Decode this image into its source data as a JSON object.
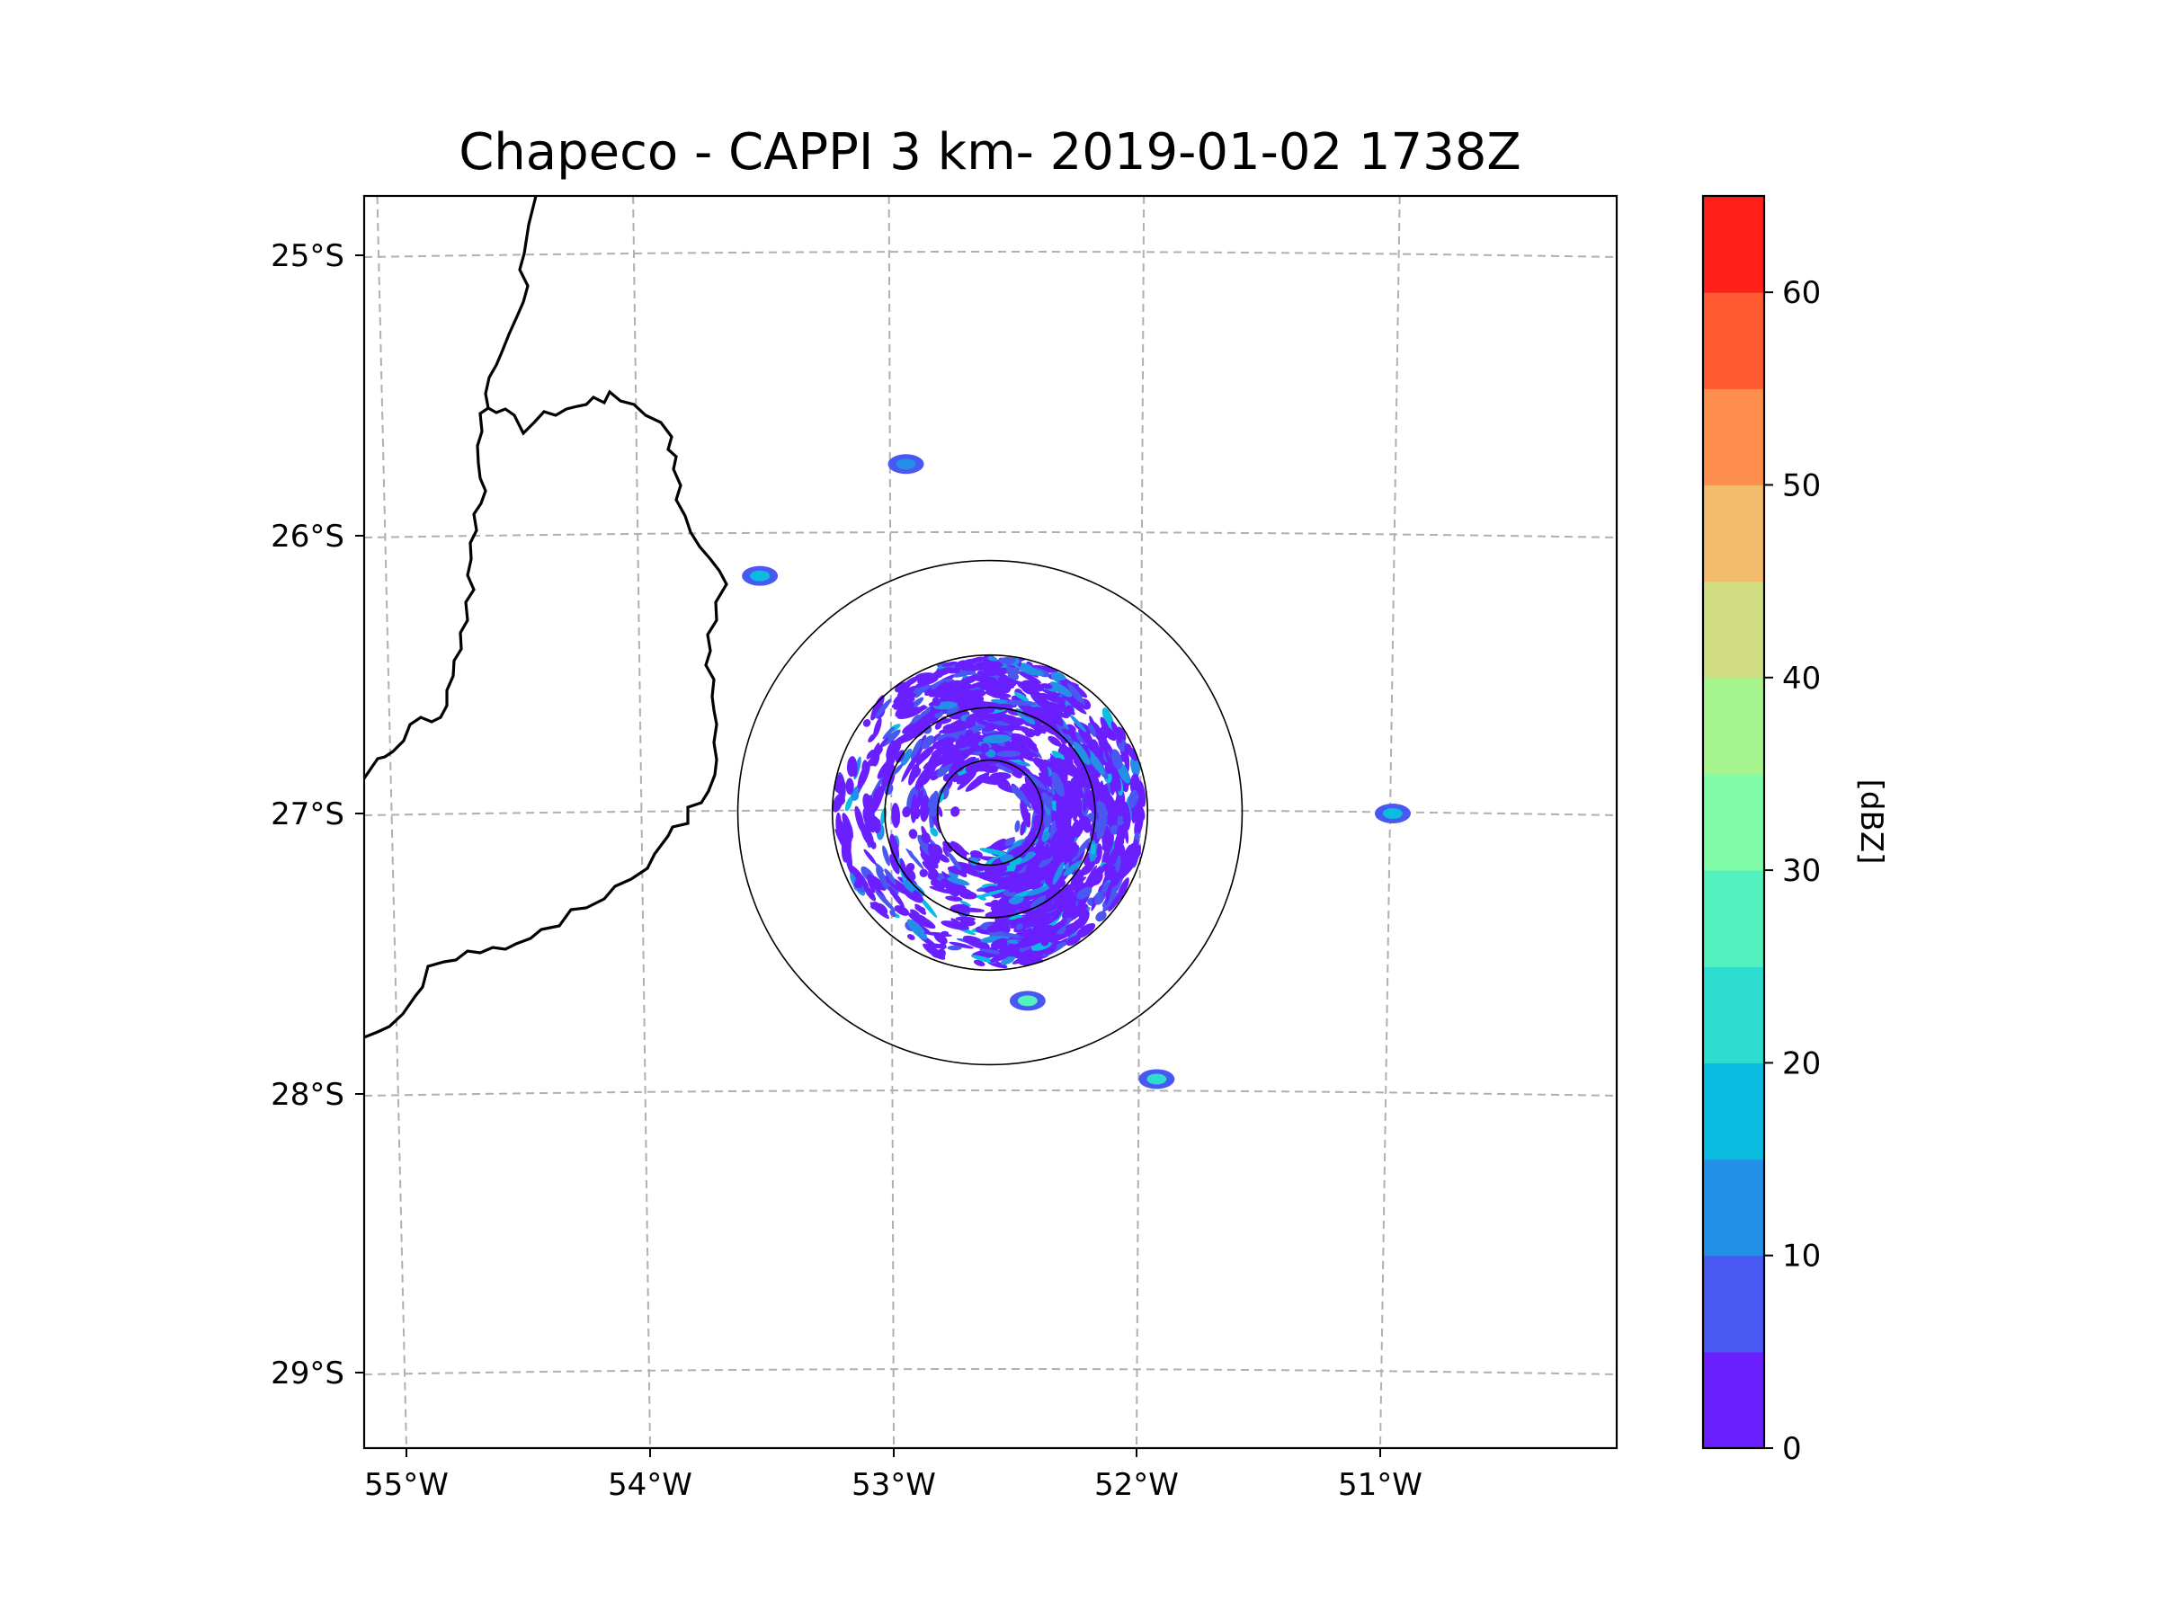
{
  "chart_data": {
    "type": "heatmap",
    "title": "Chapeco - CAPPI 3 km- 2019-01-02 1738Z",
    "xlabel": "",
    "ylabel": "",
    "projection": "radar polar map",
    "grid": true,
    "x_ticks": [
      "55°W",
      "54°W",
      "53°W",
      "52°W",
      "51°W"
    ],
    "x_tick_values": [
      -55,
      -54,
      -53,
      -52,
      -51
    ],
    "y_ticks": [
      "25°S",
      "26°S",
      "27°S",
      "28°S",
      "29°S"
    ],
    "y_tick_values": [
      -25,
      -26,
      -27,
      -28,
      -29
    ],
    "xlim": [
      -55.17,
      -50.03
    ],
    "ylim": [
      -29.28,
      -24.78
    ],
    "radar_site": {
      "lon": -52.6,
      "lat": -27.03
    },
    "range_rings_km": [
      50,
      100,
      150,
      240
    ],
    "colorbar": {
      "label": "[dBZ]",
      "ticks": [
        "0",
        "10",
        "20",
        "30",
        "40",
        "50",
        "60"
      ],
      "tick_values": [
        0,
        10,
        20,
        30,
        40,
        50,
        60
      ],
      "min": 0,
      "max": 65,
      "levels": [
        {
          "from": 0,
          "to": 5,
          "color": "#6a1fff"
        },
        {
          "from": 5,
          "to": 10,
          "color": "#4a58f2"
        },
        {
          "from": 10,
          "to": 15,
          "color": "#2290e6"
        },
        {
          "from": 15,
          "to": 20,
          "color": "#0abde0"
        },
        {
          "from": 20,
          "to": 25,
          "color": "#2bdccf"
        },
        {
          "from": 25,
          "to": 30,
          "color": "#52f1be"
        },
        {
          "from": 30,
          "to": 35,
          "color": "#80fca9"
        },
        {
          "from": 35,
          "to": 40,
          "color": "#a6f48e"
        },
        {
          "from": 40,
          "to": 45,
          "color": "#cfdc7f"
        },
        {
          "from": 45,
          "to": 50,
          "color": "#f2bc6c"
        },
        {
          "from": 50,
          "to": 55,
          "color": "#ff8f4f"
        },
        {
          "from": 55,
          "to": 60,
          "color": "#ff5a32"
        },
        {
          "from": 60,
          "to": 65,
          "color": "#ff201a"
        }
      ]
    },
    "echo_summary": "scattered weak echoes (0–15 dBZ) between 50 and 150 km range, denser to the N, E and SE; isolated cells up to ~25 dBZ near 52.4°W 27.7°S and 51.9°W 28.0°S",
    "hotspots": [
      {
        "lon": -52.45,
        "lat": -27.67,
        "dbz": 25
      },
      {
        "lon": -51.92,
        "lat": -27.95,
        "dbz": 22
      },
      {
        "lon": -53.55,
        "lat": -26.15,
        "dbz": 15
      },
      {
        "lon": -50.95,
        "lat": -27.0,
        "dbz": 15
      },
      {
        "lon": -52.95,
        "lat": -25.75,
        "dbz": 12
      }
    ]
  }
}
